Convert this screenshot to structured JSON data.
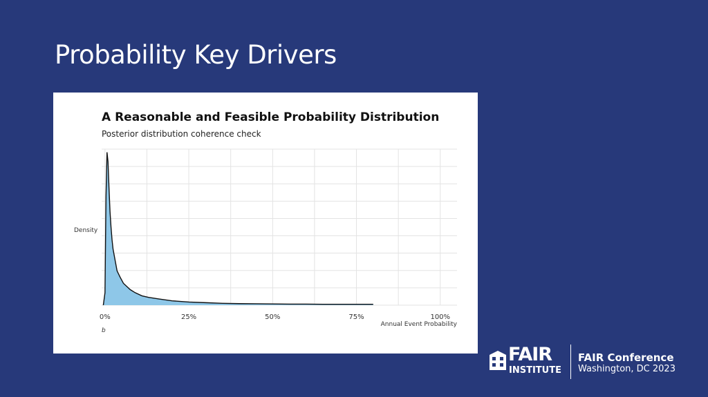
{
  "slide": {
    "title": "Probability Key Drivers"
  },
  "footer": {
    "logo_word": "FAIR",
    "logo_subword": "INSTITUTE",
    "conference_name": "FAIR Conference",
    "conference_location": "Washington, DC 2023"
  },
  "colors": {
    "background": "#27397a",
    "area_fill": "#8ec7e8",
    "line": "#111111",
    "grid": "#e3e3e3"
  },
  "chart_data": {
    "type": "area",
    "title": "A Reasonable and Feasible Probability Distribution",
    "subtitle": "Posterior distribution coherence check",
    "xlabel": "Annual Event Probability",
    "ylabel": "Density",
    "caption": "b",
    "x_ticks": [
      "0%",
      "25%",
      "50%",
      "75%",
      "100%"
    ],
    "x_tick_values": [
      0,
      0.25,
      0.5,
      0.75,
      1.0
    ],
    "xlim": [
      -0.01,
      1.05
    ],
    "ylim": [
      0,
      1
    ],
    "y_ticks_labeled": false,
    "grid": true,
    "series": [
      {
        "x": [
          -0.005,
          0.0,
          0.003,
          0.006,
          0.009,
          0.012,
          0.015,
          0.018,
          0.021,
          0.024,
          0.03,
          0.036,
          0.045,
          0.055,
          0.065,
          0.075,
          0.09,
          0.11,
          0.13,
          0.16,
          0.2,
          0.25,
          0.3,
          0.35,
          0.4,
          0.45,
          0.5,
          0.55,
          0.6,
          0.65,
          0.7,
          0.75,
          0.8
        ],
        "y": [
          0.0,
          0.08,
          0.7,
          0.98,
          0.92,
          0.75,
          0.6,
          0.5,
          0.42,
          0.36,
          0.29,
          0.22,
          0.18,
          0.14,
          0.12,
          0.1,
          0.08,
          0.06,
          0.05,
          0.04,
          0.028,
          0.02,
          0.016,
          0.012,
          0.01,
          0.009,
          0.008,
          0.007,
          0.007,
          0.006,
          0.006,
          0.006,
          0.006
        ]
      }
    ]
  }
}
